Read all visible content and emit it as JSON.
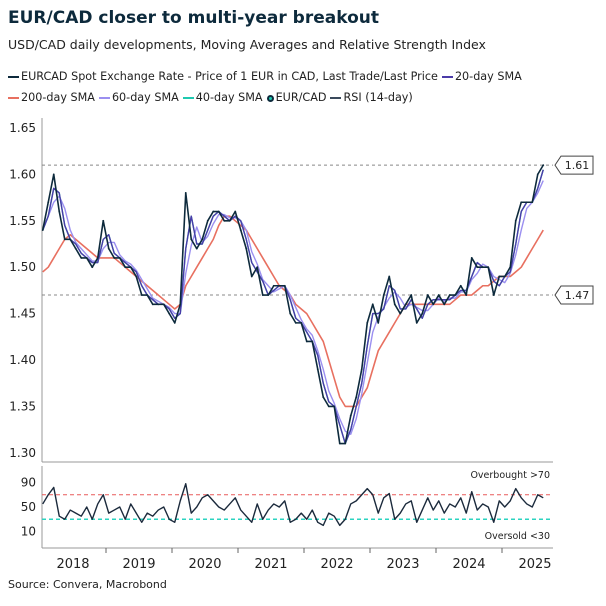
{
  "title": "EUR/CAD closer to multi-year breakout",
  "subtitle": "USD/CAD daily developments, Moving Averages and Relative Strength Index",
  "source": "Source: Convera, Macrobond",
  "legend": [
    {
      "label": "EURCAD Spot Exchange Rate - Price of 1 EUR in CAD, Last Trade/Last Price",
      "color": "#0d2a3c",
      "kind": "line"
    },
    {
      "label": "20-day SMA",
      "color": "#4b3ba8",
      "kind": "line"
    },
    {
      "label": "200-day SMA",
      "color": "#e87060",
      "kind": "line"
    },
    {
      "label": "60-day SMA",
      "color": "#9b8ff0",
      "kind": "line"
    },
    {
      "label": "40-day SMA",
      "color": "#1fc9b0",
      "kind": "line"
    },
    {
      "label": "EUR/CAD",
      "color": "#0d2a3c",
      "kind": "dot"
    },
    {
      "label": "RSI (14-day)",
      "color": "#3a4a5c",
      "kind": "line"
    }
  ],
  "chart_data": [
    {
      "type": "line",
      "ylim": [
        1.28,
        1.66
      ],
      "yticks": [
        "1.30",
        "1.35",
        "1.40",
        "1.45",
        "1.50",
        "1.55",
        "1.60",
        "1.65"
      ],
      "xticks": [
        "2018",
        "2019",
        "2020",
        "2021",
        "2022",
        "2023",
        "2024",
        "2025"
      ],
      "x_start": "2018-01",
      "x_step": "monthly",
      "spot": [
        1.54,
        1.57,
        1.6,
        1.56,
        1.53,
        1.53,
        1.52,
        1.51,
        1.51,
        1.5,
        1.51,
        1.55,
        1.52,
        1.51,
        1.51,
        1.5,
        1.5,
        1.49,
        1.47,
        1.47,
        1.46,
        1.46,
        1.46,
        1.45,
        1.44,
        1.46,
        1.58,
        1.53,
        1.52,
        1.53,
        1.55,
        1.56,
        1.56,
        1.55,
        1.55,
        1.56,
        1.54,
        1.52,
        1.49,
        1.5,
        1.47,
        1.47,
        1.48,
        1.48,
        1.48,
        1.45,
        1.44,
        1.44,
        1.42,
        1.42,
        1.39,
        1.36,
        1.35,
        1.35,
        1.31,
        1.31,
        1.34,
        1.36,
        1.39,
        1.44,
        1.46,
        1.44,
        1.47,
        1.49,
        1.46,
        1.45,
        1.46,
        1.47,
        1.44,
        1.45,
        1.47,
        1.46,
        1.47,
        1.46,
        1.47,
        1.47,
        1.48,
        1.47,
        1.51,
        1.5,
        1.5,
        1.5,
        1.47,
        1.49,
        1.49,
        1.5,
        1.55,
        1.57,
        1.57,
        1.57,
        1.6,
        1.61
      ],
      "sma200": [
        1.495,
        1.5,
        1.51,
        1.52,
        1.53,
        1.535,
        1.53,
        1.525,
        1.52,
        1.515,
        1.51,
        1.51,
        1.51,
        1.51,
        1.505,
        1.5,
        1.495,
        1.49,
        1.485,
        1.48,
        1.475,
        1.47,
        1.465,
        1.46,
        1.455,
        1.46,
        1.48,
        1.49,
        1.5,
        1.51,
        1.52,
        1.53,
        1.545,
        1.555,
        1.555,
        1.55,
        1.545,
        1.54,
        1.53,
        1.52,
        1.51,
        1.5,
        1.49,
        1.48,
        1.475,
        1.47,
        1.46,
        1.455,
        1.45,
        1.44,
        1.43,
        1.42,
        1.4,
        1.38,
        1.36,
        1.35,
        1.35,
        1.35,
        1.36,
        1.37,
        1.39,
        1.41,
        1.42,
        1.43,
        1.44,
        1.45,
        1.46,
        1.46,
        1.46,
        1.46,
        1.46,
        1.46,
        1.46,
        1.46,
        1.46,
        1.465,
        1.47,
        1.47,
        1.47,
        1.475,
        1.48,
        1.48,
        1.485,
        1.49,
        1.49,
        1.49,
        1.495,
        1.5,
        1.51,
        1.52,
        1.53,
        1.54
      ],
      "annotations": [
        {
          "value": 1.61,
          "label": "1.61"
        },
        {
          "value": 1.47,
          "label": "1.47"
        }
      ]
    },
    {
      "type": "line",
      "name": "RSI (14-day)",
      "ylim": [
        0,
        100
      ],
      "yticks": [
        "10",
        "50",
        "90"
      ],
      "overbought": 70,
      "oversold": 30,
      "overbought_label": "Overbought >70",
      "oversold_label": "Oversold <30",
      "values": [
        55,
        70,
        82,
        35,
        30,
        45,
        40,
        35,
        50,
        30,
        55,
        70,
        40,
        45,
        50,
        30,
        55,
        40,
        25,
        40,
        35,
        45,
        50,
        30,
        25,
        60,
        88,
        40,
        50,
        65,
        70,
        60,
        50,
        45,
        55,
        65,
        45,
        35,
        25,
        55,
        30,
        45,
        55,
        50,
        60,
        25,
        30,
        40,
        30,
        45,
        25,
        20,
        40,
        35,
        20,
        30,
        55,
        60,
        70,
        80,
        70,
        40,
        65,
        72,
        30,
        40,
        55,
        60,
        25,
        45,
        65,
        45,
        60,
        40,
        55,
        50,
        65,
        40,
        75,
        45,
        55,
        50,
        25,
        60,
        50,
        60,
        80,
        65,
        55,
        50,
        70,
        65
      ]
    }
  ],
  "colors": {
    "spot": "#0d2a3c",
    "sma20": "#4b3ba8",
    "sma40": "#1fc9b0",
    "sma60": "#9b8ff0",
    "sma200": "#e87060",
    "rsi": "#1b2a3c",
    "overbought": "#e85a5a",
    "oversold": "#2cd3c0"
  }
}
